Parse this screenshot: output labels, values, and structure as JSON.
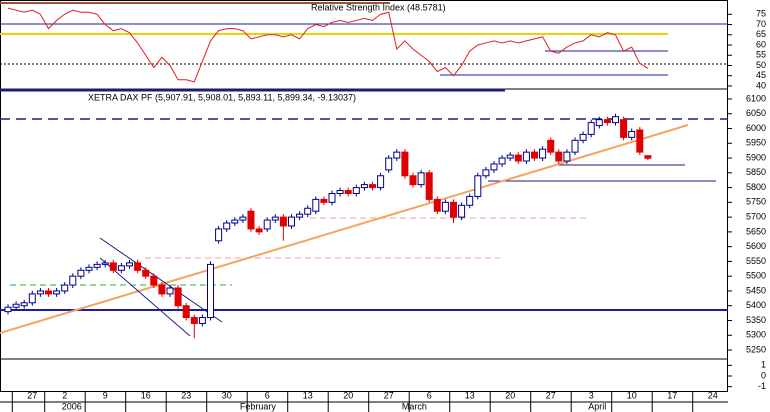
{
  "chart_data": [
    {
      "type": "line",
      "title": "Relative Strength Index (48.5781)",
      "color": "#e02020",
      "ylim": [
        39,
        81
      ],
      "yticks": [
        40,
        45,
        50,
        55,
        60,
        65,
        70,
        75
      ],
      "values": [
        78,
        77,
        76,
        77,
        75,
        68,
        72,
        75,
        77,
        76,
        76,
        75,
        70,
        67,
        68,
        66,
        61,
        55,
        49,
        54,
        50,
        43,
        43,
        42,
        52,
        62,
        67,
        68,
        68,
        67,
        63,
        64,
        65,
        65,
        64,
        65,
        63,
        68,
        70,
        69,
        71,
        72,
        71,
        72,
        73,
        72,
        75,
        76,
        58,
        62,
        58,
        55,
        52,
        47,
        49,
        45,
        50,
        57,
        60,
        61,
        62,
        61,
        62,
        61,
        62,
        63,
        64,
        57,
        56,
        59,
        61,
        62,
        65,
        64,
        66,
        65,
        57,
        59,
        51,
        48.5781,
        null,
        null,
        null,
        null,
        null,
        null,
        null,
        null
      ]
    },
    {
      "type": "candlestick",
      "title": "XETRA DAX PF (5,907.91, 5,908.01, 5,893.11, 5,899.34, -9.13037)",
      "up_color": "#00008b",
      "down_color": "#e00000",
      "ylim": [
        5223,
        6127
      ],
      "yticks": [
        5250,
        5300,
        5350,
        5400,
        5450,
        5500,
        5550,
        5600,
        5650,
        5700,
        5750,
        5800,
        5850,
        5900,
        5950,
        6000,
        6050,
        6100
      ],
      "categories": [
        null,
        null,
        null,
        "27",
        null,
        null,
        null,
        "2",
        null,
        null,
        null,
        null,
        "9",
        null,
        null,
        null,
        null,
        "16",
        null,
        null,
        null,
        null,
        "23",
        null,
        null,
        null,
        null,
        "30",
        null,
        null,
        null,
        null,
        "6",
        null,
        null,
        null,
        null,
        "13",
        null,
        null,
        null,
        null,
        "20",
        null,
        null,
        null,
        null,
        "27",
        null,
        null,
        null,
        null,
        "6",
        null,
        null,
        null,
        null,
        "13",
        null,
        null,
        null,
        null,
        "20",
        null,
        null,
        null,
        null,
        "27",
        null,
        null,
        null,
        null,
        "3",
        null,
        null,
        null,
        null,
        "10",
        null,
        null,
        null,
        null,
        "17",
        null,
        null,
        null,
        null,
        "24"
      ],
      "months": [
        null,
        null,
        null,
        null,
        null,
        null,
        null,
        "2006",
        null,
        null,
        null,
        null,
        null,
        null,
        null,
        null,
        null,
        null,
        null,
        null,
        null,
        null,
        null,
        null,
        null,
        null,
        null,
        null,
        null,
        "February",
        null,
        null,
        null,
        null,
        null,
        null,
        null,
        null,
        null,
        null,
        null,
        null,
        null,
        null,
        null,
        null,
        null,
        null,
        null,
        "March",
        null,
        null,
        null,
        null,
        null,
        null,
        null,
        null,
        null,
        null,
        null,
        null,
        null,
        null,
        null,
        null,
        null,
        null,
        null,
        null,
        null,
        null,
        "April",
        null,
        null,
        null,
        null,
        null,
        null,
        null,
        null,
        null,
        null,
        null,
        null,
        null,
        null,
        null
      ],
      "open": [
        5380,
        5395,
        5400,
        5410,
        5440,
        5450,
        5440,
        5450,
        5470,
        5500,
        5520,
        5530,
        5540,
        5545,
        5520,
        5535,
        5545,
        5520,
        5500,
        5470,
        5440,
        5460,
        5400,
        5360,
        5340,
        5360,
        5620,
        5660,
        5680,
        5690,
        5720,
        5660,
        5660,
        5690,
        5700,
        5670,
        5700,
        5710,
        5720,
        5760,
        5750,
        5780,
        5790,
        5780,
        5800,
        5810,
        5800,
        5860,
        5900,
        5920,
        5840,
        5810,
        5850,
        5760,
        5720,
        5750,
        5700,
        5740,
        5770,
        5840,
        5860,
        5880,
        5900,
        5910,
        5890,
        5920,
        5900,
        5960,
        5920,
        5890,
        5920,
        5960,
        5980,
        6010,
        6030,
        6020,
        6030,
        5970,
        5995,
        5907.91,
        null,
        null,
        null,
        null,
        null,
        null,
        null,
        null
      ],
      "high": [
        5405,
        5415,
        5420,
        5450,
        5460,
        5460,
        5460,
        5480,
        5510,
        5530,
        5540,
        5550,
        5555,
        5555,
        5545,
        5555,
        5555,
        5530,
        5510,
        5480,
        5470,
        5470,
        5410,
        5370,
        5370,
        5550,
        5670,
        5690,
        5700,
        5710,
        5730,
        5670,
        5700,
        5710,
        5710,
        5710,
        5720,
        5740,
        5770,
        5770,
        5790,
        5800,
        5800,
        5810,
        5820,
        5820,
        5850,
        5910,
        5930,
        5930,
        5850,
        5860,
        5860,
        5770,
        5760,
        5760,
        5750,
        5780,
        5850,
        5870,
        5890,
        5910,
        5920,
        5920,
        5930,
        5930,
        5940,
        5970,
        5930,
        5930,
        5970,
        5990,
        6030,
        6040,
        6040,
        6050,
        6040,
        6000,
        6005,
        5908.01,
        null,
        null,
        null,
        null,
        null,
        null,
        null,
        null
      ],
      "low": [
        5370,
        5385,
        5390,
        5400,
        5430,
        5430,
        5430,
        5440,
        5460,
        5490,
        5510,
        5520,
        5530,
        5510,
        5510,
        5525,
        5510,
        5490,
        5460,
        5430,
        5430,
        5390,
        5350,
        5290,
        5330,
        5350,
        5610,
        5650,
        5670,
        5680,
        5650,
        5640,
        5650,
        5680,
        5620,
        5660,
        5690,
        5700,
        5710,
        5740,
        5740,
        5770,
        5770,
        5770,
        5790,
        5790,
        5790,
        5850,
        5890,
        5830,
        5800,
        5800,
        5750,
        5710,
        5710,
        5680,
        5690,
        5730,
        5760,
        5830,
        5850,
        5870,
        5890,
        5880,
        5880,
        5890,
        5890,
        5910,
        5880,
        5880,
        5910,
        5950,
        5970,
        6000,
        6010,
        6010,
        5960,
        5960,
        5910,
        5893.11,
        null,
        null,
        null,
        null,
        null,
        null,
        null,
        null
      ],
      "close": [
        5395,
        5405,
        5410,
        5440,
        5450,
        5440,
        5450,
        5470,
        5500,
        5520,
        5530,
        5540,
        5545,
        5520,
        5535,
        5545,
        5520,
        5500,
        5470,
        5440,
        5460,
        5400,
        5360,
        5340,
        5360,
        5540,
        5660,
        5680,
        5690,
        5700,
        5660,
        5650,
        5690,
        5700,
        5670,
        5700,
        5710,
        5730,
        5760,
        5750,
        5780,
        5790,
        5780,
        5800,
        5810,
        5800,
        5840,
        5900,
        5920,
        5840,
        5810,
        5850,
        5760,
        5720,
        5750,
        5700,
        5740,
        5770,
        5840,
        5860,
        5880,
        5900,
        5910,
        5890,
        5920,
        5900,
        5930,
        5920,
        5890,
        5920,
        5960,
        5980,
        6020,
        6030,
        6020,
        6040,
        5970,
        5990,
        5920,
        5899.34,
        null,
        null,
        null,
        null,
        null,
        null,
        null,
        null
      ]
    },
    {
      "type": "bar",
      "ylim": [
        -1.5,
        1.5
      ],
      "yticks": [
        1,
        0,
        -1
      ]
    }
  ]
}
